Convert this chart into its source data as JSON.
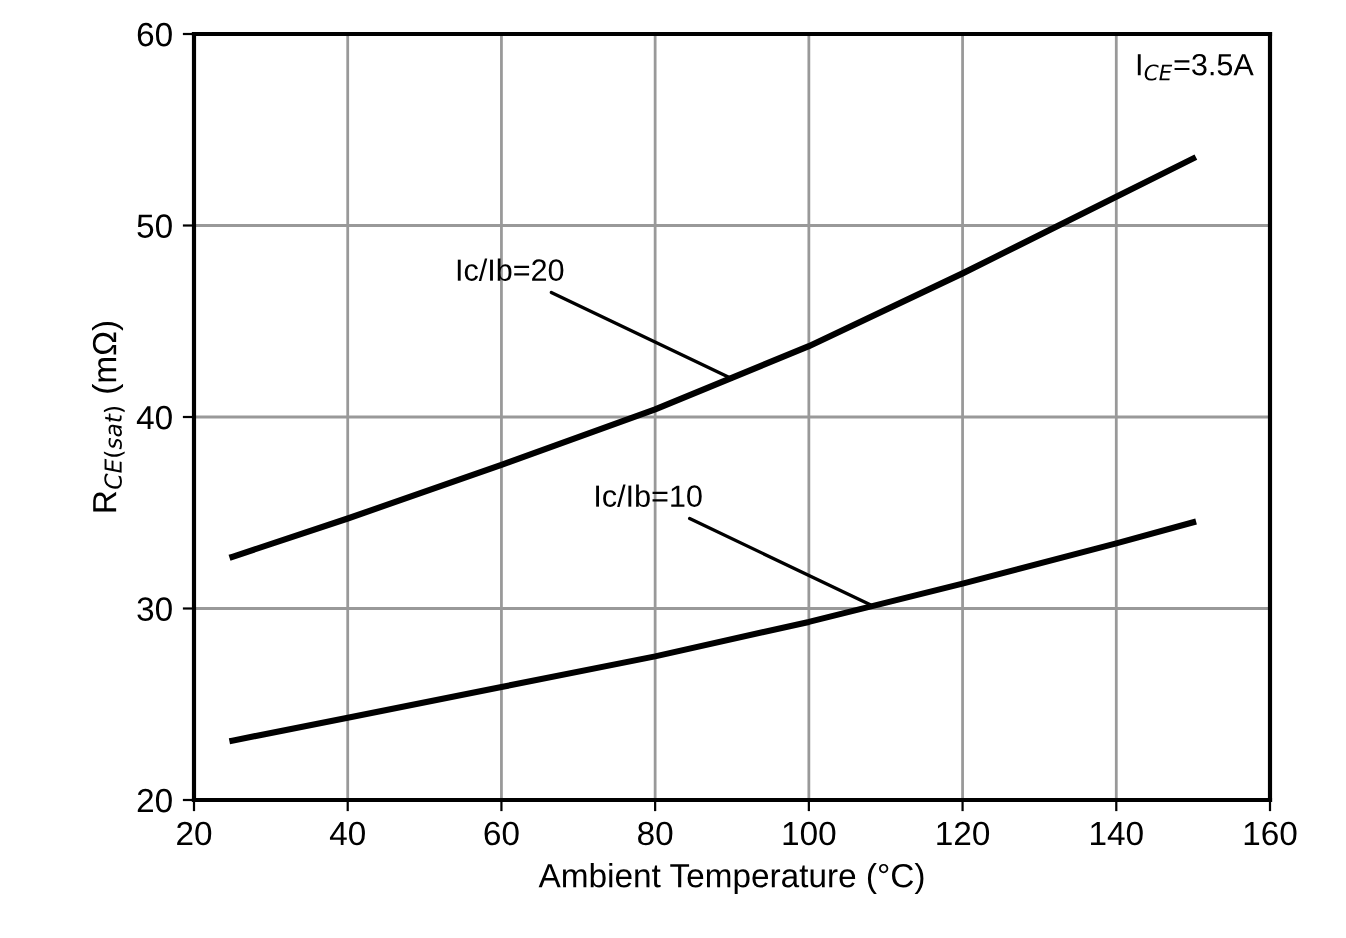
{
  "chart_data": {
    "type": "line",
    "xlabel": "Ambient Temperature (°C)",
    "ylabel": "R$_{CE(sat)}$ (mΩ)",
    "x": [
      25,
      40,
      60,
      80,
      100,
      120,
      140,
      150
    ],
    "series": [
      {
        "color": "#000000",
        "values": [
          32.7,
          34.7,
          37.5,
          40.4,
          43.7,
          47.5,
          51.5,
          53.5
        ]
      },
      {
        "color": "#000000",
        "values": [
          23.1,
          24.3,
          25.9,
          27.5,
          29.3,
          31.3,
          33.4,
          34.5
        ]
      }
    ],
    "xlim": [
      20,
      160
    ],
    "xticks": [
      20,
      40,
      60,
      80,
      100,
      120,
      140,
      160
    ],
    "ylim": [
      20,
      60
    ],
    "yticks": [
      20,
      30,
      40,
      50,
      60
    ],
    "grid": true,
    "marker": "none",
    "line_style": "solid",
    "annotations": [
      {
        "text": "Ic/Ib=20",
        "x": 90,
        "y": 42
      },
      {
        "text": "Ic/Ib=10",
        "x": 108,
        "y": 30.2
      },
      "I$_{CE}$=3.5A"
    ]
  }
}
